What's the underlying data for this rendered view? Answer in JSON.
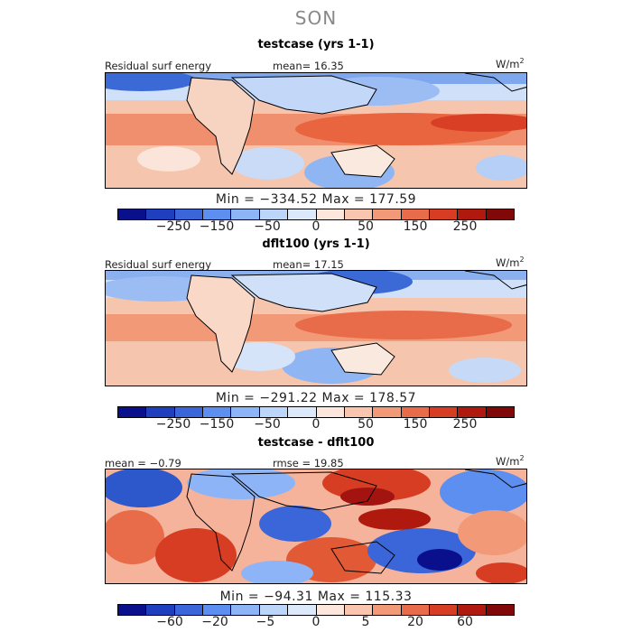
{
  "season": "SON",
  "units": "W/m",
  "units_sup": "2",
  "panels": [
    {
      "title": "testcase (yrs 1-1)",
      "left_label": "Residual surf energy",
      "mid_label": "mean=  16.35",
      "minmax": "Min = −334.52 Max = 177.59",
      "ticks": [
        "−250",
        "−150",
        "−50",
        "0",
        "50",
        "150",
        "250"
      ]
    },
    {
      "title": "dflt100 (yrs 1-1)",
      "left_label": "Residual surf energy",
      "mid_label": "mean=  17.15",
      "minmax": "Min = −291.22 Max = 178.57",
      "ticks": [
        "−250",
        "−150",
        "−50",
        "0",
        "50",
        "150",
        "250"
      ]
    },
    {
      "title": "testcase - dflt100",
      "left_label": "mean =  −0.79",
      "mid_label": "rmse =  19.85",
      "minmax": "Min = −94.31 Max = 115.33",
      "ticks": [
        "−60",
        "−20",
        "−5",
        "0",
        "5",
        "20",
        "60"
      ]
    }
  ],
  "chart_data": [
    {
      "type": "heatmap",
      "title": "testcase (yrs 1-1)",
      "variable": "Residual surf energy",
      "units": "W/m2",
      "mean": 16.35,
      "min": -334.52,
      "max": 177.59,
      "colorbar_levels": [
        -250,
        -150,
        -50,
        0,
        50,
        150,
        250
      ]
    },
    {
      "type": "heatmap",
      "title": "dflt100 (yrs 1-1)",
      "variable": "Residual surf energy",
      "units": "W/m2",
      "mean": 17.15,
      "min": -291.22,
      "max": 178.57,
      "colorbar_levels": [
        -250,
        -150,
        -50,
        0,
        50,
        150,
        250
      ]
    },
    {
      "type": "heatmap",
      "title": "testcase - dflt100",
      "units": "W/m2",
      "mean": -0.79,
      "rmse": 19.85,
      "min": -94.31,
      "max": 115.33,
      "colorbar_levels": [
        -60,
        -20,
        -5,
        0,
        5,
        20,
        60
      ]
    }
  ],
  "colorbar_colors": [
    "#0a0f8c",
    "#1f3fbf",
    "#3a66d9",
    "#5c8ff0",
    "#8cb4f7",
    "#bcd6fa",
    "#dce9fb",
    "#fde7dc",
    "#f9c5ae",
    "#f29a78",
    "#e86b4a",
    "#d63d22",
    "#b01a0e",
    "#800808"
  ]
}
